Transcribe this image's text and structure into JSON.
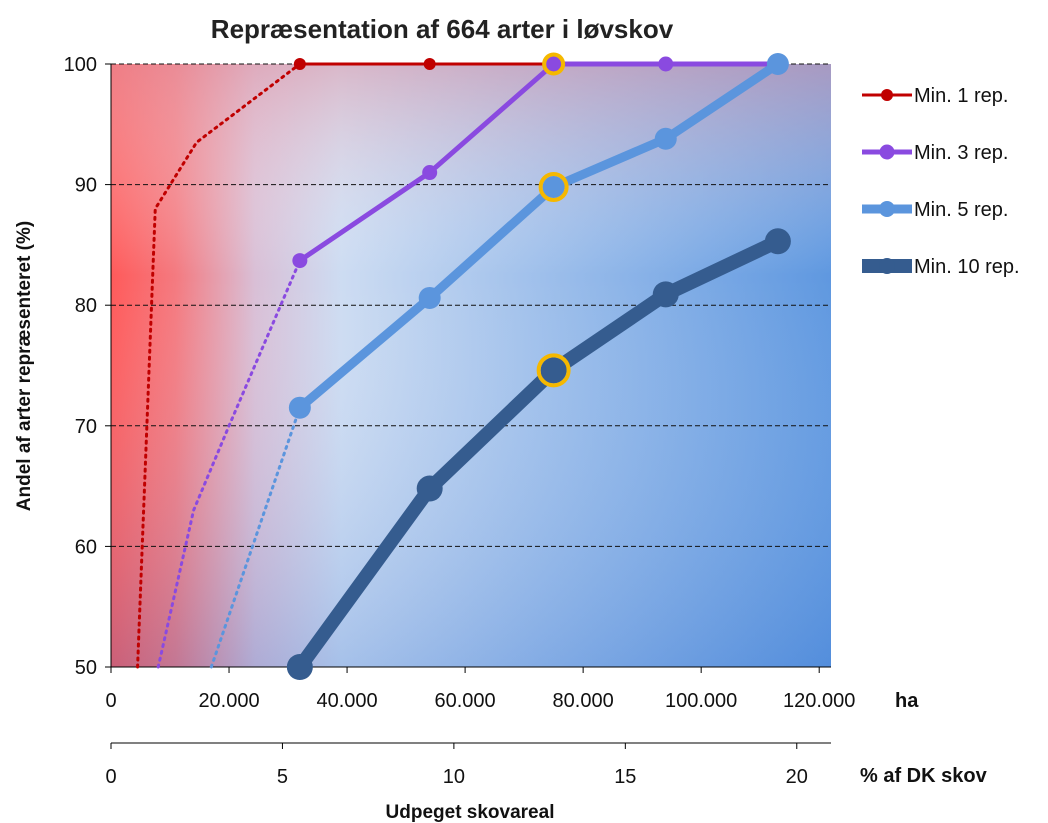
{
  "chart_data": {
    "type": "line",
    "title": "Repræsentation af 664 arter i løvskov",
    "ylabel": "Andel af arter repræsenteret (%)",
    "xlabel": "Udpeget skovareal",
    "x_unit_ha": "ha",
    "x_unit_pct": "% af DK skov",
    "ylim": [
      50,
      100
    ],
    "xlim_ha": [
      0,
      122000
    ],
    "y_ticks": [
      "50",
      "60",
      "70",
      "80",
      "90",
      "100"
    ],
    "x_ticks_ha": [
      "0",
      "20.000",
      "40.000",
      "60.000",
      "80.000",
      "100.000",
      "120.000"
    ],
    "x_ticks_pct": [
      "0",
      "5",
      "10",
      "15",
      "20"
    ],
    "grid": "horizontal dashed",
    "legend_position": "right",
    "background": "gradient red (left) to blue (right)",
    "highlight_color": "#f5b800",
    "series": [
      {
        "name": "Min. 1 rep.",
        "color": "#c00000",
        "x": [
          32000,
          54000,
          75000,
          94000,
          113000
        ],
        "y": [
          100,
          100,
          100,
          100,
          100
        ],
        "extrapolation": {
          "x": [
            4500,
            7500,
            14500,
            32000
          ],
          "y": [
            50,
            88,
            93.5,
            100
          ]
        },
        "highlight_index": 2
      },
      {
        "name": "Min. 3 rep.",
        "color": "#8a4ae0",
        "x": [
          32000,
          54000,
          75000,
          94000,
          113000
        ],
        "y": [
          83.7,
          91,
          100,
          100,
          100
        ],
        "extrapolation": {
          "x": [
            8000,
            14000,
            20000,
            32000
          ],
          "y": [
            50,
            63,
            70,
            83.7
          ]
        },
        "highlight_index": 2
      },
      {
        "name": "Min. 5 rep.",
        "color": "#5b95dd",
        "x": [
          32000,
          54000,
          75000,
          94000,
          113000
        ],
        "y": [
          71.5,
          80.6,
          89.8,
          93.8,
          100
        ],
        "extrapolation": {
          "x": [
            17000,
            32000
          ],
          "y": [
            50,
            71.5
          ]
        },
        "highlight_index": 2
      },
      {
        "name": "Min. 10 rep.",
        "color": "#355c8f",
        "x": [
          32000,
          54000,
          75000,
          94000,
          113000
        ],
        "y": [
          50,
          64.8,
          74.6,
          80.9,
          85.3
        ],
        "highlight_index": 2
      }
    ]
  }
}
